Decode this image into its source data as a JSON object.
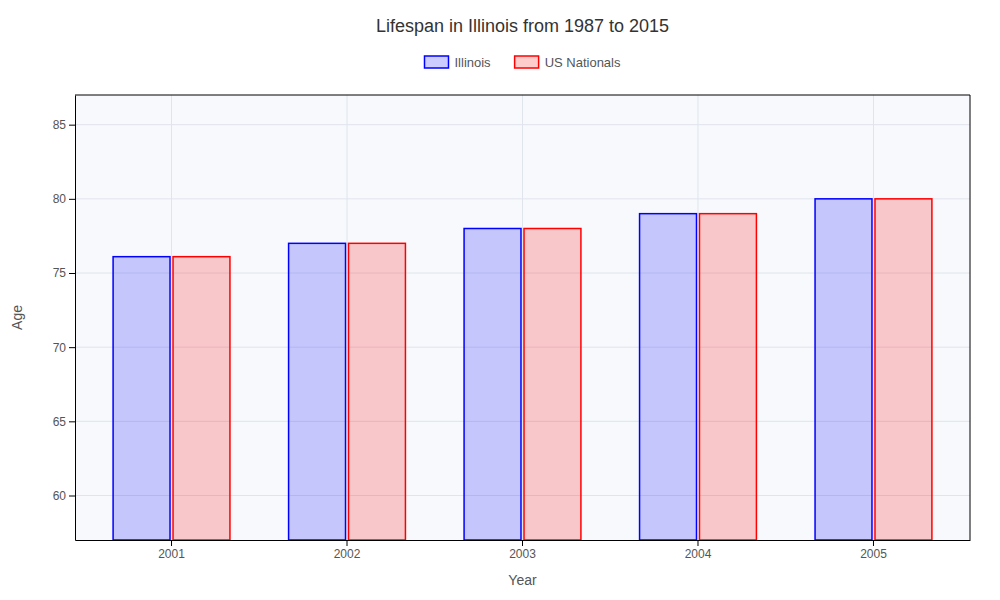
{
  "chart_data": {
    "type": "bar",
    "title": "Lifespan in Illinois from 1987 to 2015",
    "xlabel": "Year",
    "ylabel": "Age",
    "categories": [
      "2001",
      "2002",
      "2003",
      "2004",
      "2005"
    ],
    "series": [
      {
        "name": "Illinois",
        "color": "#0000ff",
        "values": [
          76.1,
          77.0,
          78.0,
          79.0,
          80.0
        ]
      },
      {
        "name": "US Nationals",
        "color": "#ff0000",
        "values": [
          76.1,
          77.0,
          78.0,
          79.0,
          80.0
        ]
      }
    ],
    "ylim": [
      57,
      87
    ],
    "yticks": [
      60,
      65,
      70,
      75,
      80,
      85
    ],
    "grid": true,
    "legend": "top"
  }
}
